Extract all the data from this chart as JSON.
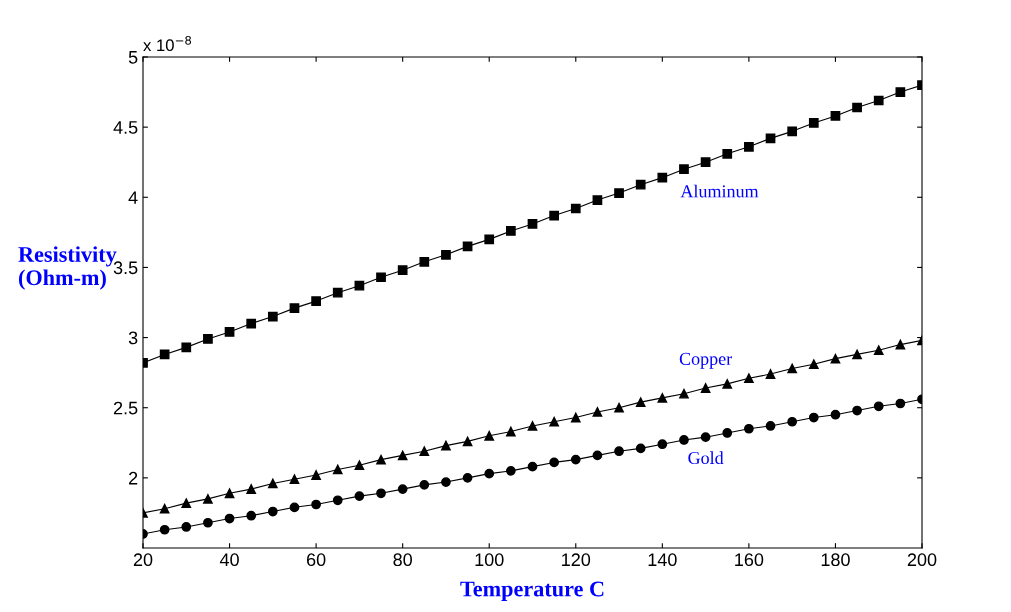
{
  "chart_data": {
    "type": "line",
    "xlabel": "Temperature C",
    "ylabel": "Resistivity\n(Ohm-m)",
    "annotations": [
      "x 10$^{−8}$"
    ],
    "x": [
      20,
      25,
      30,
      35,
      40,
      45,
      50,
      55,
      60,
      65,
      70,
      75,
      80,
      85,
      90,
      95,
      100,
      105,
      110,
      115,
      120,
      125,
      130,
      135,
      140,
      145,
      150,
      155,
      160,
      165,
      170,
      175,
      180,
      185,
      190,
      195,
      200
    ],
    "xlim": [
      20,
      200
    ],
    "xticks": [
      20,
      40,
      60,
      80,
      100,
      120,
      140,
      160,
      180,
      200
    ],
    "ylim": [
      1.5,
      5
    ],
    "yticks": [
      2,
      2.5,
      3,
      3.5,
      4,
      4.5,
      5
    ],
    "grid": false,
    "legend": false,
    "line_style": "solid",
    "series": [
      {
        "name": "Aluminum",
        "color": "#000000",
        "marker": "square",
        "values": [
          2.82,
          2.88,
          2.93,
          2.99,
          3.04,
          3.1,
          3.15,
          3.21,
          3.26,
          3.32,
          3.37,
          3.43,
          3.48,
          3.54,
          3.59,
          3.65,
          3.7,
          3.76,
          3.81,
          3.87,
          3.92,
          3.98,
          4.03,
          4.09,
          4.14,
          4.2,
          4.25,
          4.31,
          4.36,
          4.42,
          4.47,
          4.53,
          4.58,
          4.64,
          4.69,
          4.75,
          4.8
        ]
      },
      {
        "name": "Copper",
        "color": "#000000",
        "marker": "triangle",
        "values": [
          1.75,
          1.78,
          1.82,
          1.85,
          1.89,
          1.92,
          1.96,
          1.99,
          2.02,
          2.06,
          2.09,
          2.13,
          2.16,
          2.19,
          2.23,
          2.26,
          2.3,
          2.33,
          2.37,
          2.4,
          2.43,
          2.47,
          2.5,
          2.54,
          2.57,
          2.6,
          2.64,
          2.67,
          2.71,
          2.74,
          2.78,
          2.81,
          2.85,
          2.88,
          2.91,
          2.95,
          2.98
        ]
      },
      {
        "name": "Gold",
        "color": "#000000",
        "marker": "circle",
        "values": [
          1.6,
          1.63,
          1.65,
          1.68,
          1.71,
          1.73,
          1.76,
          1.79,
          1.81,
          1.84,
          1.87,
          1.89,
          1.92,
          1.95,
          1.97,
          2.0,
          2.03,
          2.05,
          2.08,
          2.11,
          2.13,
          2.16,
          2.19,
          2.21,
          2.24,
          2.27,
          2.29,
          2.32,
          2.35,
          2.37,
          2.4,
          2.43,
          2.45,
          2.48,
          2.51,
          2.53,
          2.56
        ]
      }
    ]
  }
}
